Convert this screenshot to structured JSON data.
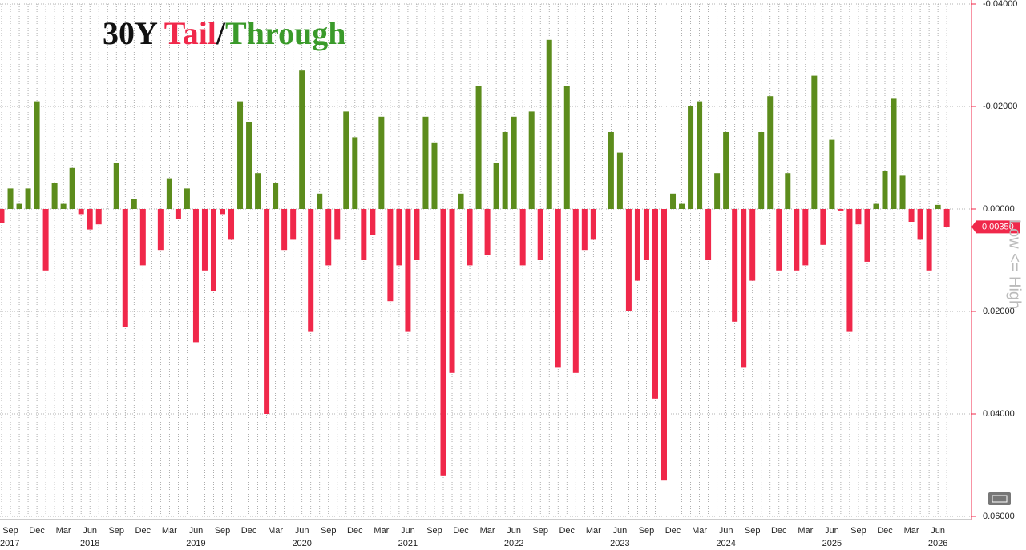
{
  "chart_data": {
    "type": "bar",
    "title_parts": [
      {
        "text": "30Y ",
        "color": "#111111"
      },
      {
        "text": "Tail",
        "color": "#f0284a"
      },
      {
        "text": "/",
        "color": "#111111"
      },
      {
        "text": "Through",
        "color": "#3a9a2a"
      }
    ],
    "y_axis_label": "Low <= High",
    "categories": [
      null,
      "Sep",
      null,
      null,
      "Dec",
      null,
      null,
      "Mar",
      null,
      null,
      "Jun",
      null,
      null,
      "Sep",
      null,
      null,
      "Dec",
      null,
      null,
      "Mar",
      null,
      null,
      "Jun",
      null,
      null,
      "Sep",
      null,
      null,
      "Dec",
      null,
      null,
      "Mar",
      null,
      null,
      "Jun",
      null,
      null,
      "Sep",
      null,
      null,
      "Dec",
      null,
      null,
      "Mar",
      null,
      null,
      "Jun",
      null,
      null,
      "Sep",
      null,
      null,
      "Dec",
      null,
      null,
      "Mar",
      null,
      null,
      "Jun",
      null,
      null,
      "Sep",
      null,
      null,
      "Dec",
      null,
      null,
      "Mar",
      null,
      null,
      "Jun",
      null,
      null,
      "Sep",
      null,
      null,
      "Dec",
      null,
      null,
      "Mar",
      null,
      null,
      "Jun",
      null,
      null,
      "Sep",
      null,
      null,
      "Dec",
      null,
      null,
      "Mar",
      null,
      null,
      "Jun",
      null,
      null,
      "Sep",
      null,
      null,
      "Dec",
      null,
      null,
      "Mar",
      null,
      null,
      "Jun",
      null
    ],
    "years": [
      "2017",
      "2018",
      "2019",
      "2020",
      "2021",
      "2022",
      "2023",
      "2024",
      "2025",
      "2026"
    ],
    "values": [
      0.0028,
      -0.004,
      -0.001,
      -0.004,
      -0.021,
      0.012,
      -0.005,
      -0.001,
      -0.008,
      0.001,
      0.004,
      0.003,
      0,
      -0.009,
      0.023,
      -0.002,
      0.011,
      0,
      0.008,
      -0.006,
      0.002,
      -0.004,
      0.026,
      0.012,
      0.016,
      0.001,
      0.006,
      -0.021,
      -0.017,
      -0.007,
      0.04,
      -0.005,
      0.008,
      0.006,
      -0.027,
      0.024,
      -0.003,
      0.011,
      0.006,
      -0.019,
      -0.014,
      0.01,
      0.005,
      -0.018,
      0.018,
      0.011,
      0.024,
      0.01,
      -0.018,
      -0.013,
      0.052,
      0.032,
      -0.003,
      0.011,
      -0.024,
      0.009,
      -0.009,
      -0.015,
      -0.018,
      0.011,
      -0.019,
      0.01,
      -0.033,
      0.031,
      -0.024,
      0.032,
      0.008,
      0.006,
      0,
      -0.015,
      -0.011,
      0.02,
      0.014,
      0.01,
      0.037,
      0.053,
      -0.003,
      -0.001,
      -0.02,
      -0.021,
      0.01,
      -0.007,
      -0.015,
      0.022,
      0.031,
      0.014,
      -0.015,
      -0.022,
      0.012,
      -0.007,
      0.012,
      0.011,
      -0.026,
      0.007,
      -0.0135,
      0.0003,
      0.024,
      0.003,
      0.0103,
      -0.001,
      -0.0075,
      -0.0215,
      -0.0065,
      0.0025,
      0.006,
      0.012,
      -0.0008,
      0.0035
    ],
    "positive_color": "#f0284a",
    "negative_color": "#5c8c1c",
    "last_value_label": "0.00350",
    "ylim": [
      -0.04,
      0.06
    ],
    "yticks": [
      {
        "value": -0.04,
        "label": "-0.04000"
      },
      {
        "value": -0.02,
        "label": "-0.02000"
      },
      {
        "value": 0,
        "label": "0.00000"
      },
      {
        "value": 0.02,
        "label": "0.02000"
      },
      {
        "value": 0.04,
        "label": "0.04000"
      },
      {
        "value": 0.06,
        "label": "0.06000"
      }
    ],
    "grid": true
  }
}
